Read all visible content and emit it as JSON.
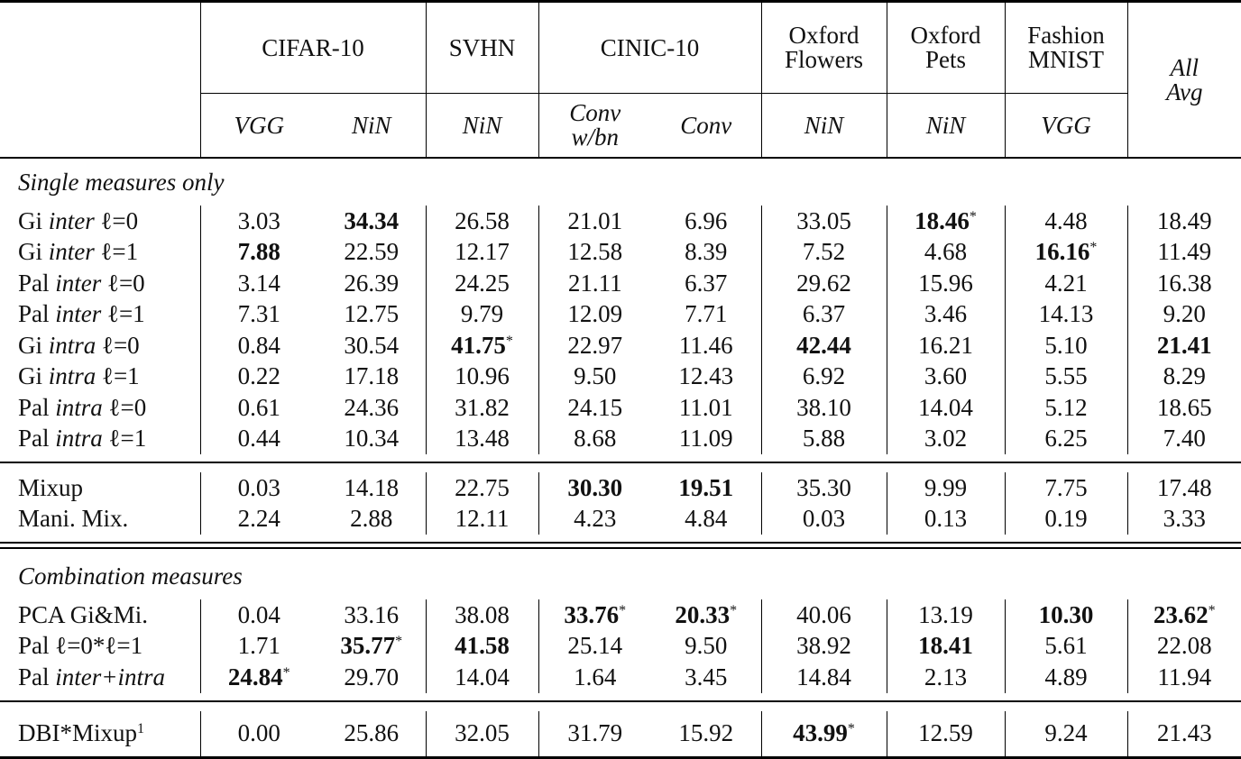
{
  "table": {
    "datasets": [
      {
        "name": "CIFAR-10",
        "span": 2
      },
      {
        "name": "SVHN",
        "span": 1
      },
      {
        "name": "CINIC-10",
        "span": 2
      },
      {
        "name_line1": "Oxford",
        "name_line2": "Flowers",
        "span": 1
      },
      {
        "name_line1": "Oxford",
        "name_line2": "Pets",
        "span": 1
      },
      {
        "name_line1": "Fashion",
        "name_line2": "MNIST",
        "span": 1
      }
    ],
    "avg_header": {
      "line1": "All",
      "line2": "Avg"
    },
    "models": [
      {
        "label": "VGG"
      },
      {
        "label": "NiN"
      },
      {
        "label": "NiN"
      },
      {
        "line1": "Conv",
        "line2": "w/bn"
      },
      {
        "label": "Conv"
      },
      {
        "label": "NiN"
      },
      {
        "label": "NiN"
      },
      {
        "label": "VGG"
      }
    ],
    "sections": [
      {
        "title": "Single measures only",
        "groups": [
          {
            "rows": [
              {
                "prefix": "Gi",
                "italic": "inter",
                "suffix": "ℓ=0",
                "values": [
                  "3.03",
                  "34.34",
                  "26.58",
                  "21.01",
                  "6.96",
                  "33.05",
                  "18.46",
                  "4.48",
                  "18.49"
                ],
                "bold": [
                  1,
                  6
                ],
                "star": [
                  6
                ]
              },
              {
                "prefix": "Gi",
                "italic": "inter",
                "suffix": "ℓ=1",
                "values": [
                  "7.88",
                  "22.59",
                  "12.17",
                  "12.58",
                  "8.39",
                  "7.52",
                  "4.68",
                  "16.16",
                  "11.49"
                ],
                "bold": [
                  0,
                  7
                ],
                "star": [
                  7
                ]
              },
              {
                "prefix": "Pal",
                "italic": "inter",
                "suffix": "ℓ=0",
                "values": [
                  "3.14",
                  "26.39",
                  "24.25",
                  "21.11",
                  "6.37",
                  "29.62",
                  "15.96",
                  "4.21",
                  "16.38"
                ],
                "bold": [],
                "star": []
              },
              {
                "prefix": "Pal",
                "italic": "inter",
                "suffix": "ℓ=1",
                "values": [
                  "7.31",
                  "12.75",
                  "9.79",
                  "12.09",
                  "7.71",
                  "6.37",
                  "3.46",
                  "14.13",
                  "9.20"
                ],
                "bold": [],
                "star": []
              },
              {
                "prefix": "Gi",
                "italic": "intra",
                "suffix": "ℓ=0",
                "values": [
                  "0.84",
                  "30.54",
                  "41.75",
                  "22.97",
                  "11.46",
                  "42.44",
                  "16.21",
                  "5.10",
                  "21.41"
                ],
                "bold": [
                  2,
                  5,
                  8
                ],
                "star": [
                  2
                ]
              },
              {
                "prefix": "Gi",
                "italic": "intra",
                "suffix": "ℓ=1",
                "values": [
                  "0.22",
                  "17.18",
                  "10.96",
                  "9.50",
                  "12.43",
                  "6.92",
                  "3.60",
                  "5.55",
                  "8.29"
                ],
                "bold": [],
                "star": []
              },
              {
                "prefix": "Pal",
                "italic": "intra",
                "suffix": "ℓ=0",
                "values": [
                  "0.61",
                  "24.36",
                  "31.82",
                  "24.15",
                  "11.01",
                  "38.10",
                  "14.04",
                  "5.12",
                  "18.65"
                ],
                "bold": [],
                "star": []
              },
              {
                "prefix": "Pal",
                "italic": "intra",
                "suffix": "ℓ=1",
                "values": [
                  "0.44",
                  "10.34",
                  "13.48",
                  "8.68",
                  "11.09",
                  "5.88",
                  "3.02",
                  "6.25",
                  "7.40"
                ],
                "bold": [],
                "star": []
              }
            ]
          },
          {
            "rows": [
              {
                "prefix": "Mixup",
                "italic": "",
                "suffix": "",
                "values": [
                  "0.03",
                  "14.18",
                  "22.75",
                  "30.30",
                  "19.51",
                  "35.30",
                  "9.99",
                  "7.75",
                  "17.48"
                ],
                "bold": [
                  3,
                  4
                ],
                "star": []
              },
              {
                "prefix": "Mani. Mix.",
                "italic": "",
                "suffix": "",
                "values": [
                  "2.24",
                  "2.88",
                  "12.11",
                  "4.23",
                  "4.84",
                  "0.03",
                  "0.13",
                  "0.19",
                  "3.33"
                ],
                "bold": [],
                "star": []
              }
            ]
          }
        ]
      },
      {
        "title": "Combination measures",
        "groups": [
          {
            "rows": [
              {
                "prefix": "PCA Gi&Mi.",
                "italic": "",
                "suffix": "",
                "values": [
                  "0.04",
                  "33.16",
                  "38.08",
                  "33.76",
                  "20.33",
                  "40.06",
                  "13.19",
                  "10.30",
                  "23.62"
                ],
                "bold": [
                  3,
                  4,
                  7,
                  8
                ],
                "star": [
                  3,
                  4,
                  8
                ]
              },
              {
                "prefix": "Pal",
                "italic": "",
                "suffix": "ℓ=0*ℓ=1",
                "values": [
                  "1.71",
                  "35.77",
                  "41.58",
                  "25.14",
                  "9.50",
                  "38.92",
                  "18.41",
                  "5.61",
                  "22.08"
                ],
                "bold": [
                  1,
                  2,
                  6
                ],
                "star": [
                  1
                ]
              },
              {
                "prefix": "Pal",
                "italic": "inter+intra",
                "suffix": "",
                "values": [
                  "24.84",
                  "29.70",
                  "14.04",
                  "1.64",
                  "3.45",
                  "14.84",
                  "2.13",
                  "4.89",
                  "11.94"
                ],
                "bold": [
                  0
                ],
                "star": [
                  0
                ]
              }
            ]
          },
          {
            "rows": [
              {
                "prefix": "DBI*Mixup",
                "sup": "1",
                "italic": "",
                "suffix": "",
                "values": [
                  "0.00",
                  "25.86",
                  "32.05",
                  "31.79",
                  "15.92",
                  "43.99",
                  "12.59",
                  "9.24",
                  "21.43"
                ],
                "bold": [
                  5
                ],
                "star": [
                  5
                ]
              }
            ]
          }
        ]
      }
    ],
    "star_symbol": "*"
  }
}
